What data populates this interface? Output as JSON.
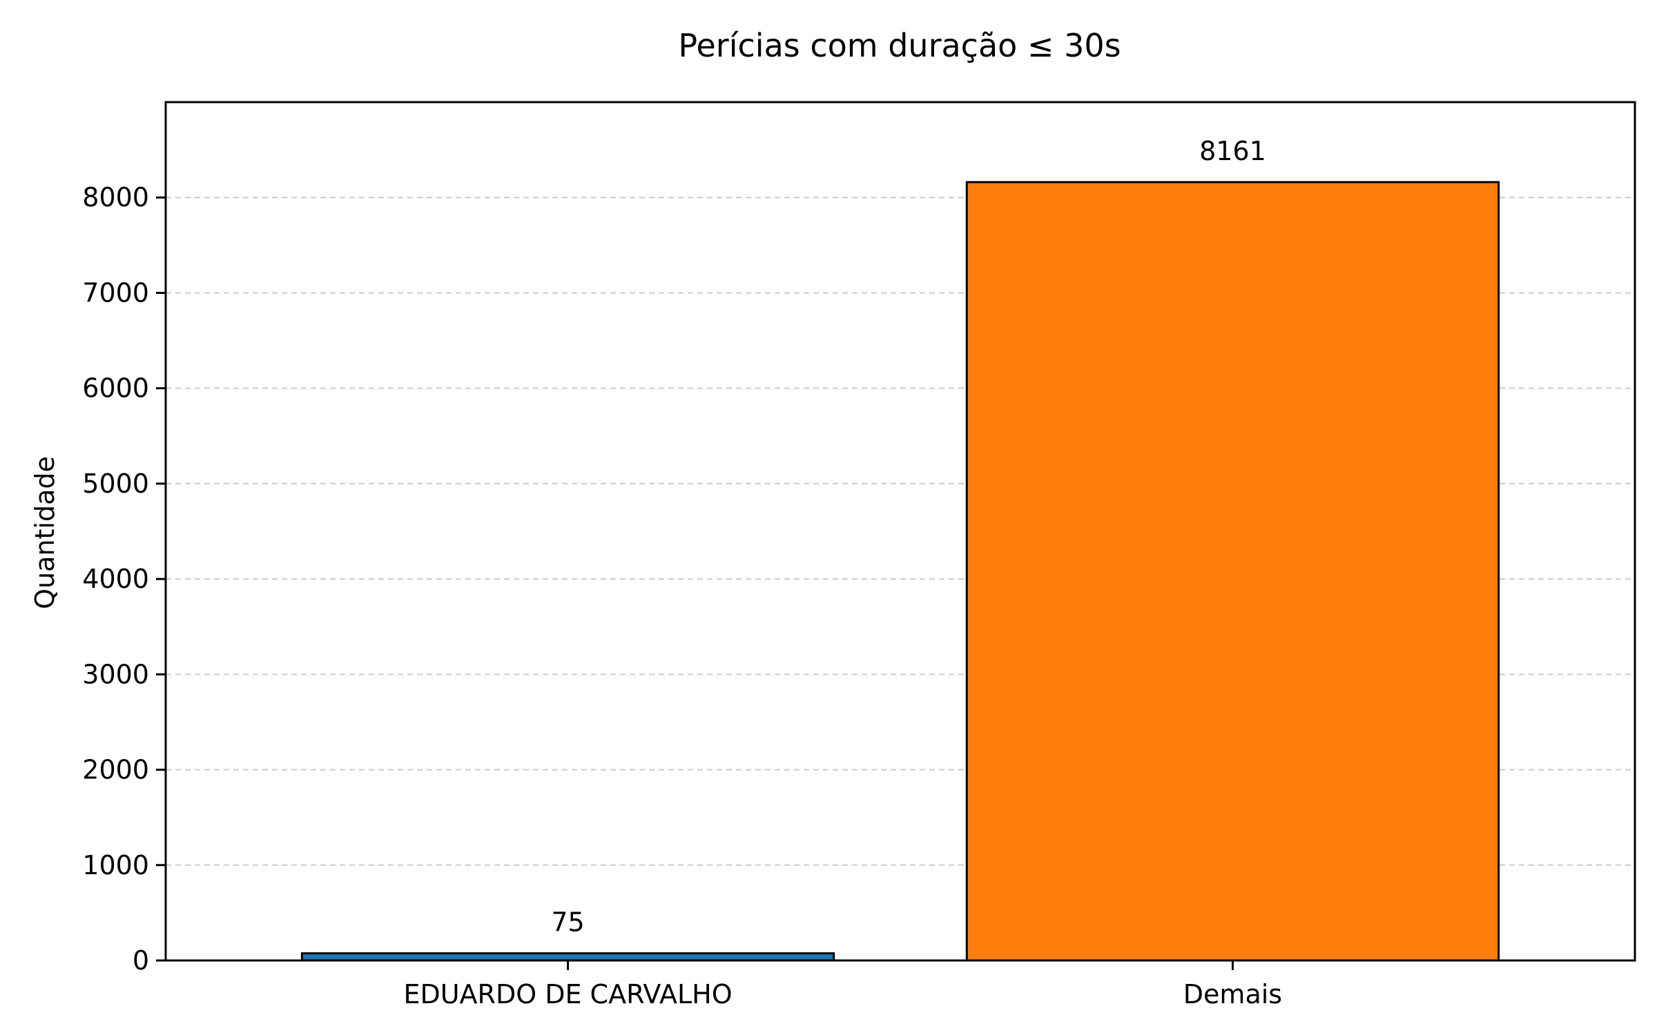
{
  "chart_data": {
    "type": "bar",
    "title": "Perícias com duração ≤ 30s",
    "xlabel": "",
    "ylabel": "Quantidade",
    "categories": [
      "EDUARDO DE CARVALHO",
      "Demais"
    ],
    "values": [
      75,
      8161
    ],
    "data_labels": [
      "75",
      "8161"
    ],
    "colors": [
      "#1f77b4",
      "#ff7f0e"
    ],
    "edge_color": "#000000",
    "ylim": [
      0,
      9000
    ],
    "yticks": [
      0,
      1000,
      2000,
      3000,
      4000,
      5000,
      6000,
      7000,
      8000
    ],
    "ytick_labels": [
      "0",
      "1000",
      "2000",
      "3000",
      "4000",
      "5000",
      "6000",
      "7000",
      "8000"
    ],
    "grid": {
      "axis": "y",
      "style": "dashed",
      "color": "#cccccc"
    },
    "legend": false
  }
}
